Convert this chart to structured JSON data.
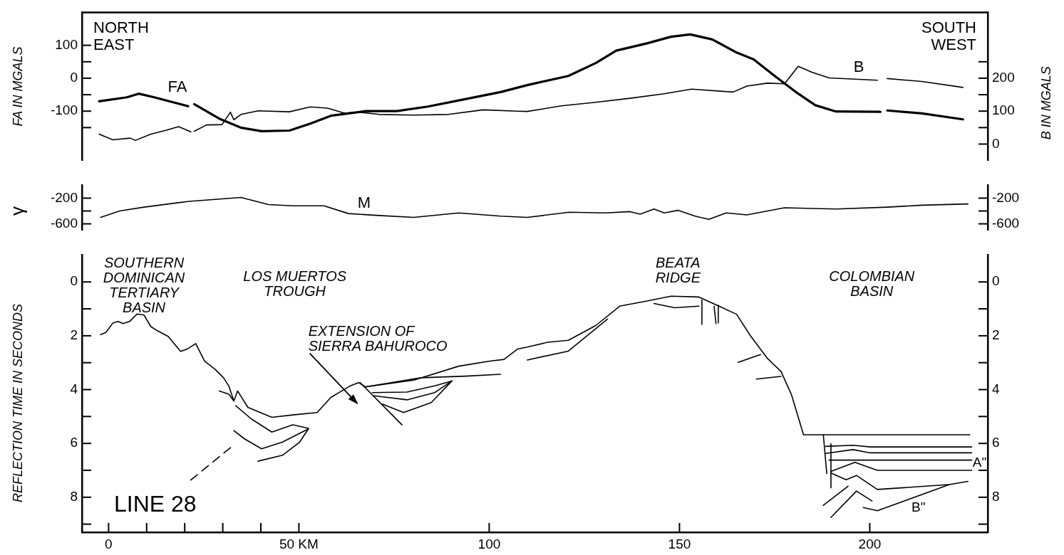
{
  "chart_data": [
    {
      "type": "line",
      "xlim": [
        -7,
        231
      ],
      "tick_labels": "y",
      "ylim": [
        -250,
        200
      ],
      "yticks": [
        {
          "value": -150,
          "label": null
        },
        -100,
        {
          "value": -50,
          "label": null
        },
        0,
        {
          "value": 50,
          "label": null
        },
        100
      ],
      "y2lim": [
        -50,
        400
      ],
      "y2ticks": [
        0,
        {
          "value": 50,
          "label": null
        },
        100,
        {
          "value": 150,
          "label": null
        },
        200,
        {
          "value": 250,
          "label": null
        }
      ],
      "ylabel": "FA IN MGALS",
      "y2label": "B IN MGALS",
      "annotations": [
        "NORTH\nEAST",
        "SOUTH\nWEST"
      ],
      "series": [
        {
          "name": "FA",
          "color": "#000000",
          "x": [
            -2.5,
            4.8,
            7.9,
            12.0,
            16.6,
            20.9,
            21.7,
            22.5,
            29.3,
            34.7,
            40.2,
            47.5,
            53.0,
            58.4,
            67.5,
            75.7,
            83.9,
            93.9,
            103,
            110,
            120.8,
            128,
            133.4,
            141.5,
            147.8,
            152.8,
            158.6,
            165,
            169.5,
            174.9,
            181.2,
            185.7,
            191.1,
            202.8,
            203.7,
            204.6,
            213.7,
            224.5
          ],
          "values": [
            -70,
            -58,
            -47,
            -58,
            -72,
            -85,
            null,
            -79,
            -124,
            -150,
            -161,
            -159,
            -138,
            -114,
            -100,
            -100,
            -86,
            -63,
            -42,
            -21,
            7,
            46,
            84,
            106,
            126,
            133,
            118,
            78,
            57,
            8,
            -47,
            -82,
            -101,
            -102,
            null,
            -98,
            -107,
            -125
          ]
        },
        {
          "name": "B",
          "color": "#000000",
          "axis": "y2",
          "x": [
            -2.5,
            1.1,
            5.7,
            7.0,
            11.1,
            14.8,
            18.4,
            21.6,
            22,
            22.5,
            25.7,
            29.8,
            32.0,
            32.9,
            34.8,
            39.3,
            47.5,
            53.0,
            57.5,
            62.0,
            65.7,
            71.1,
            80.2,
            89.3,
            98.4,
            107.5,
            110,
            119,
            128,
            137,
            146,
            153.2,
            164.1,
            167.7,
            173.1,
            177.6,
            181.2,
            184.8,
            189.3,
            202,
            203.3,
            204.6,
            213.7,
            224.5
          ],
          "values": [
            30,
            13,
            18,
            11,
            30,
            41,
            53,
            37,
            null,
            39,
            58,
            59,
            97,
            74,
            90,
            101,
            98,
            113,
            109,
            94,
            97,
            90,
            88,
            90,
            104,
            100,
            99,
            116,
            127,
            139,
            153,
            167,
            158,
            176,
            185,
            183,
            236,
            218,
            201,
            194,
            null,
            199,
            190,
            172
          ]
        }
      ]
    },
    {
      "type": "line",
      "xlim": [
        -7,
        231
      ],
      "tick_labels": "y",
      "ylim": [
        -700,
        0
      ],
      "yticks": [
        -200,
        {
          "value": -400,
          "label": null
        },
        -600
      ],
      "y2lim": [
        -700,
        0
      ],
      "y2ticks": [
        -200,
        {
          "value": -400,
          "label": null
        },
        -600
      ],
      "ylabel": "γ",
      "series": [
        {
          "name": "M",
          "color": "#000000",
          "x": [
            -2.1,
            2.9,
            9.3,
            21.1,
            34.8,
            42.0,
            48.4,
            56.6,
            63.0,
            71.1,
            80.2,
            92.0,
            103,
            110,
            121,
            130.6,
            137,
            139.7,
            143.3,
            146,
            149.6,
            154.1,
            157.7,
            162.3,
            167.7,
            177.6,
            191.1,
            204.6,
            213.7,
            225.8
          ],
          "values": [
            -500,
            -400,
            -340,
            -250,
            -190,
            -300,
            -320,
            -320,
            -440,
            -470,
            -500,
            -430,
            -480,
            -500,
            -420,
            -430,
            -410,
            -450,
            -370,
            -430,
            -390,
            -480,
            -530,
            -430,
            -460,
            -350,
            -370,
            -340,
            -310,
            -290
          ]
        }
      ]
    },
    {
      "type": "line",
      "xlim": [
        -7,
        231
      ],
      "xticks": [
        0,
        {
          "value": 10,
          "label": null
        },
        {
          "value": 20,
          "label": null
        },
        {
          "value": 30,
          "label": null
        },
        {
          "value": 40,
          "label": null
        },
        {
          "value": 50,
          "label": "50 KM"
        },
        100,
        150,
        200
      ],
      "ylim": [
        9.3,
        -1
      ],
      "yticks": [
        0,
        {
          "value": 1,
          "label": null
        },
        2,
        {
          "value": 3,
          "label": null
        },
        4,
        {
          "value": 5,
          "label": null
        },
        6,
        {
          "value": 7,
          "label": null
        },
        8,
        {
          "value": 9,
          "label": null
        }
      ],
      "y2lim": [
        9.3,
        -1
      ],
      "y2ticks": [
        0,
        {
          "value": 1,
          "label": null
        },
        2,
        {
          "value": 3,
          "label": null
        },
        4,
        {
          "value": 5,
          "label": null
        },
        6,
        {
          "value": 7,
          "label": null
        },
        8,
        {
          "value": 9,
          "label": null
        }
      ],
      "ylabel": "REFLECTION TIME IN SECONDS",
      "annotations": [
        "SOUTHERN\nDOMINICAN\nTERTIARY\nBASIN",
        "LOS MUERTOS\nTROUGH",
        "EXTENSION OF\nSIERRA BAHUROCO",
        "BEATA\nRIDGE",
        "COLOMBIAN\nBASIN",
        "A\"",
        "B\"",
        "LINE 28"
      ],
      "series": [
        {
          "color": "#000000",
          "x": [
            -2.1,
            -0.7,
            1.1,
            2.5,
            3.8,
            5.5,
            7.5,
            9.3,
            11.1,
            12.9,
            15.7,
            18.9,
            20.7,
            22.9,
            25.2,
            28.0,
            30.2,
            31.6,
            32.9,
            33.9,
            36.6,
            42.9,
            48.4,
            54.8,
            58.4,
            62.0,
            63.4,
            65.7,
            67.5,
            80.2,
            92.0,
            100.2,
            103.9,
            107.5,
            110,
            115.4,
            120.8,
            128,
            134.3,
            141.5,
            147.8,
            155.1,
            160.4,
            165,
            168.6,
            173.1,
            176.7,
            179.4,
            182.6,
            226.3
          ],
          "values": [
            1.96,
            1.88,
            1.53,
            1.47,
            1.55,
            1.47,
            1.19,
            1.23,
            1.66,
            1.82,
            2.03,
            2.58,
            2.49,
            2.29,
            2.94,
            3.25,
            3.56,
            3.87,
            4.42,
            4.05,
            4.66,
            5.03,
            4.94,
            4.85,
            4.29,
            3.99,
            3.87,
            3.74,
            3.9,
            3.65,
            3.13,
            2.94,
            2.88,
            2.49,
            2.42,
            2.24,
            2.17,
            1.62,
            0.9,
            0.71,
            0.53,
            0.56,
            0.9,
            1.2,
            1.99,
            2.84,
            3.33,
            4.18,
            5.68,
            5.68
          ]
        },
        {
          "color": "#000000",
          "x": [
            29.1,
            31.6,
            32.9
          ],
          "values": [
            4.05,
            4.17,
            4.42
          ]
        },
        {
          "color": "#000000",
          "x": [
            33.4,
            37.5,
            42.9,
            48.4,
            52.5
          ],
          "values": [
            4.6,
            5.09,
            5.58,
            5.31,
            5.44
          ]
        },
        {
          "color": "#000000",
          "x": [
            32.9,
            35.7,
            40.2,
            45.7,
            52.5
          ],
          "values": [
            5.52,
            5.83,
            6.2,
            5.95,
            5.46
          ]
        },
        {
          "color": "#000000",
          "x": [
            39.3,
            45.7,
            50.2,
            52.5
          ],
          "values": [
            6.66,
            6.44,
            5.95,
            5.46
          ]
        },
        {
          "color": "#000000",
          "line_style": "dashed",
          "x": [
            21.6,
            32.5
          ],
          "values": [
            7.36,
            6.1
          ]
        },
        {
          "color": "#000000",
          "x": [
            66.1,
            77.1
          ],
          "values": [
            3.74,
            5.31
          ]
        },
        {
          "color": "#000000",
          "x": [
            69.3,
            78.4,
            85.7,
            90.2
          ],
          "values": [
            4.11,
            4.09,
            3.86,
            3.68
          ]
        },
        {
          "color": "#000000",
          "x": [
            69.8,
            78.4,
            85.7,
            90.2
          ],
          "values": [
            4.23,
            4.38,
            4.11,
            3.68
          ]
        },
        {
          "color": "#000000",
          "x": [
            72.0,
            77.5,
            84.8,
            90.2
          ],
          "values": [
            4.54,
            4.85,
            4.48,
            3.68
          ]
        },
        {
          "color": "#000000",
          "x": [
            67.5,
            82.1,
            93.9,
            103,
            106,
            110,
            120.8,
            131.1
          ],
          "values": [
            3.9,
            3.56,
            3.5,
            3.43,
            null,
            2.9,
            2.57,
            1.38
          ]
        },
        {
          "color": "#000000",
          "x": [
            143.3,
            148.7,
            155.1
          ],
          "values": [
            0.8,
            0.96,
            0.9
          ]
        },
        {
          "color": "#000000",
          "x": [
            155.9,
            155.9
          ],
          "values": [
            0.67,
            1.58
          ]
        },
        {
          "color": "#000000",
          "x": [
            159.1,
            159.6
          ],
          "values": [
            0.9,
            1.55
          ]
        },
        {
          "color": "#000000",
          "x": [
            160.2,
            160.2
          ],
          "values": [
            0.87,
            1.52
          ]
        },
        {
          "color": "#000000",
          "x": [
            165.4,
            171.3
          ],
          "values": [
            2.99,
            2.7
          ]
        },
        {
          "color": "#000000",
          "x": [
            170.2,
            176.7
          ],
          "values": [
            3.61,
            3.51
          ]
        },
        {
          "color": "#000000",
          "x": [
            188.4,
            195.6,
            200.1,
            226.8
          ],
          "values": [
            6.11,
            6.07,
            6.13,
            6.13
          ]
        },
        {
          "color": "#000000",
          "x": [
            188.4,
            195.6,
            200.1,
            226.8
          ],
          "values": [
            6.37,
            6.23,
            6.35,
            6.35
          ]
        },
        {
          "color": "#000000",
          "x": [
            189.3,
            226.8
          ],
          "values": [
            6.62,
            6.62
          ]
        },
        {
          "color": "#000000",
          "x": [
            189.8,
            196.1,
            202,
            226.8
          ],
          "values": [
            7.04,
            6.7,
            7.0,
            7.0
          ]
        },
        {
          "color": "#000000",
          "x": [
            189.8,
            193.8,
            196.5,
            202,
            220.9,
            225.8
          ],
          "values": [
            7.1,
            7.35,
            7.19,
            7.71,
            7.53,
            7.41
          ]
        },
        {
          "color": "#000000",
          "x": [
            198.3,
            202,
            220.9
          ],
          "values": [
            8.38,
            8.5,
            7.53
          ]
        },
        {
          "color": "#000000",
          "x": [
            187.8,
            194.3
          ],
          "values": [
            8.3,
            7.59
          ]
        },
        {
          "color": "#000000",
          "x": [
            189.8,
            196.5,
            200.6
          ],
          "values": [
            8.75,
            7.77,
            8.14
          ]
        },
        {
          "color": "#000000",
          "x": [
            187.8,
            188.7
          ],
          "values": [
            5.68,
            7.12
          ]
        },
        {
          "color": "#000000",
          "x": [
            189.8,
            189.8
          ],
          "values": [
            6.01,
            7.65
          ]
        }
      ]
    }
  ]
}
